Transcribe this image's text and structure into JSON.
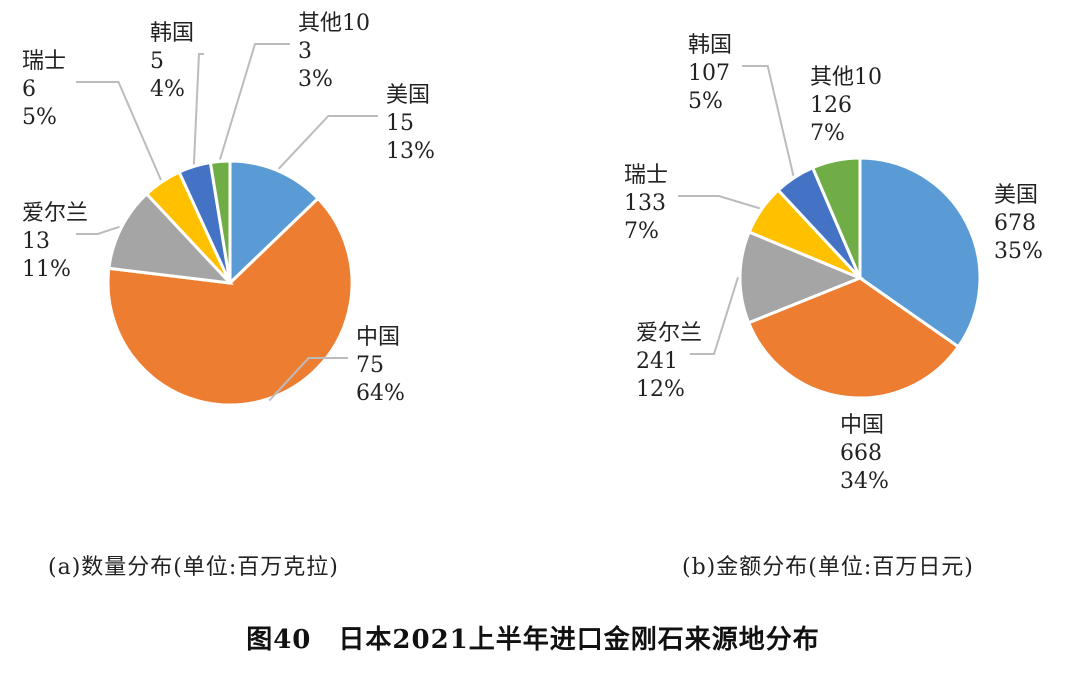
{
  "figure_title": "图40　日本2021上半年进口金刚石来源地分布",
  "colors": {
    "usa": "#5b9bd5",
    "china": "#ed7d31",
    "ireland": "#a5a5a5",
    "switzerland": "#ffc000",
    "korea": "#4472c4",
    "others": "#70ad47"
  },
  "chart_data": [
    {
      "type": "pie",
      "caption": "(a)数量分布(单位:百万克拉)",
      "slices": [
        {
          "name": "美国",
          "value": "15",
          "percent": "13%",
          "color_key": "usa"
        },
        {
          "name": "中国",
          "value": "75",
          "percent": "64%",
          "color_key": "china"
        },
        {
          "name": "爱尔兰",
          "value": "13",
          "percent": "11%",
          "color_key": "ireland"
        },
        {
          "name": "瑞士",
          "value": "6",
          "percent": "5%",
          "color_key": "switzerland"
        },
        {
          "name": "韩国",
          "value": "5",
          "percent": "4%",
          "color_key": "korea"
        },
        {
          "name": "其他10",
          "value": "3",
          "percent": "3%",
          "color_key": "others"
        }
      ]
    },
    {
      "type": "pie",
      "caption": "(b)金额分布(单位:百万日元)",
      "slices": [
        {
          "name": "美国",
          "value": "678",
          "percent": "35%",
          "color_key": "usa"
        },
        {
          "name": "中国",
          "value": "668",
          "percent": "34%",
          "color_key": "china"
        },
        {
          "name": "爱尔兰",
          "value": "241",
          "percent": "12%",
          "color_key": "ireland"
        },
        {
          "name": "瑞士",
          "value": "133",
          "percent": "7%",
          "color_key": "switzerland"
        },
        {
          "name": "韩国",
          "value": "107",
          "percent": "5%",
          "color_key": "korea"
        },
        {
          "name": "其他10",
          "value": "126",
          "percent": "7%",
          "color_key": "others"
        }
      ]
    }
  ]
}
